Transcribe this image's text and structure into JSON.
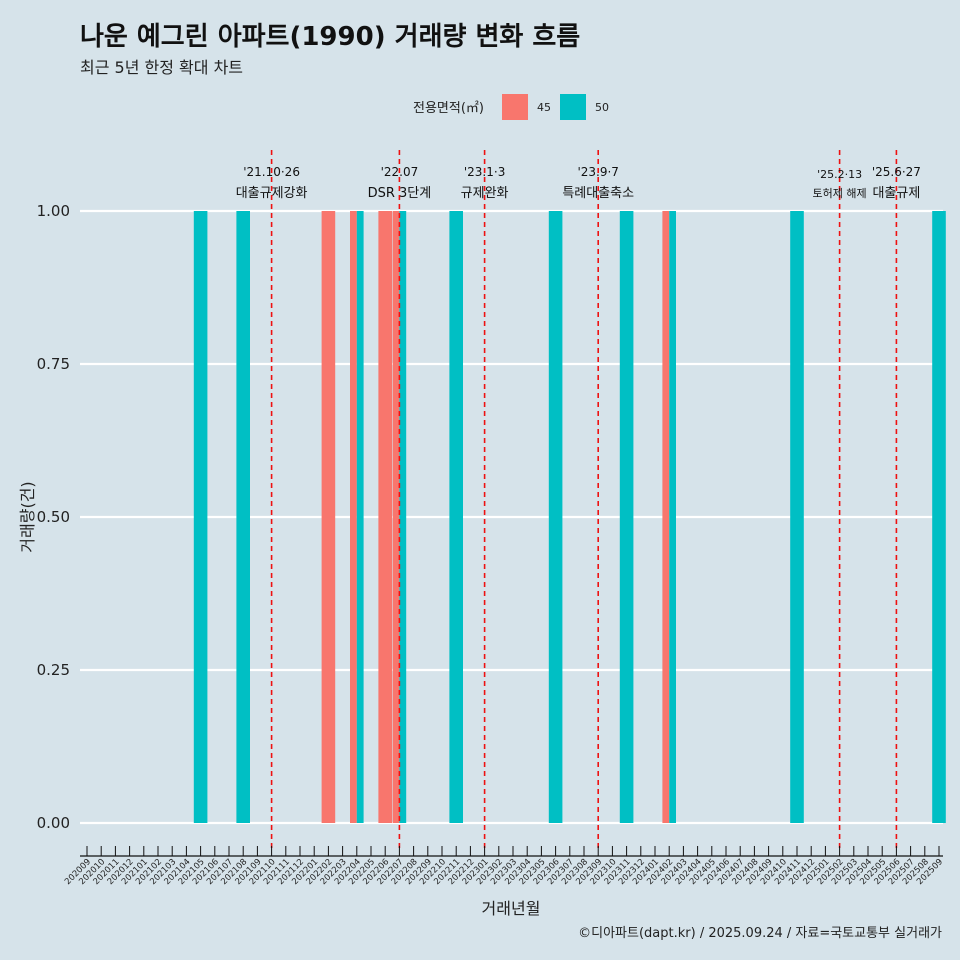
{
  "header": {
    "title": "나운 예그린 아파트(1990) 거래량 변화 흐름",
    "subtitle": "최근 5년 한정 확대 차트"
  },
  "caption": "©디아파트(dapt.kr) / 2025.09.24 / 자료=국토교통부 실거래가",
  "legend": {
    "title": "전용면적(㎡)",
    "items": [
      {
        "label": "45",
        "color": "#F8766D"
      },
      {
        "label": "50",
        "color": "#00BFC4"
      }
    ]
  },
  "chart_data": {
    "type": "bar",
    "title": "나운 예그린 아파트(1990) 거래량 변화 흐름",
    "subtitle": "최근 5년 한정 확대 차트",
    "xlabel": "거래년월",
    "ylabel": "거래량(건)",
    "ylim": [
      0,
      1
    ],
    "yticks": [
      "0.00",
      "0.25",
      "0.50",
      "0.75",
      "1.00"
    ],
    "categories": [
      "202009",
      "202010",
      "202011",
      "202012",
      "202101",
      "202102",
      "202103",
      "202104",
      "202105",
      "202106",
      "202107",
      "202108",
      "202109",
      "202110",
      "202111",
      "202112",
      "202201",
      "202202",
      "202203",
      "202204",
      "202205",
      "202206",
      "202207",
      "202208",
      "202209",
      "202210",
      "202211",
      "202212",
      "202301",
      "202302",
      "202303",
      "202304",
      "202305",
      "202306",
      "202307",
      "202308",
      "202309",
      "202310",
      "202311",
      "202312",
      "202401",
      "202402",
      "202403",
      "202404",
      "202405",
      "202406",
      "202407",
      "202408",
      "202409",
      "202410",
      "202411",
      "202412",
      "202501",
      "202502",
      "202503",
      "202504",
      "202505",
      "202506",
      "202507",
      "202508",
      "202509"
    ],
    "series": [
      {
        "name": "45",
        "color": "#F8766D",
        "points": [
          {
            "month": "202202",
            "value": 1
          },
          {
            "month": "202204",
            "value": 1
          },
          {
            "month": "202206",
            "value": 1
          },
          {
            "month": "202207",
            "value": 1
          },
          {
            "month": "202402",
            "value": 1
          }
        ]
      },
      {
        "name": "50",
        "color": "#00BFC4",
        "points": [
          {
            "month": "202105",
            "value": 1
          },
          {
            "month": "202108",
            "value": 1
          },
          {
            "month": "202204",
            "value": 1
          },
          {
            "month": "202207",
            "value": 1
          },
          {
            "month": "202211",
            "value": 1
          },
          {
            "month": "202306",
            "value": 1
          },
          {
            "month": "202311",
            "value": 1
          },
          {
            "month": "202402",
            "value": 1
          },
          {
            "month": "202411",
            "value": 1
          },
          {
            "month": "202509",
            "value": 1
          }
        ]
      }
    ],
    "events": [
      {
        "month": "202110",
        "date": "'21.10·26",
        "label": "대출규제강화"
      },
      {
        "month": "202207",
        "date": "'22.07",
        "label": "DSR 3단계"
      },
      {
        "month": "202301",
        "date": "'23.1·3",
        "label": "규제완화"
      },
      {
        "month": "202309",
        "date": "'23.9·7",
        "label": "특례대출축소"
      },
      {
        "month": "202502",
        "date": "'25.2·13",
        "label": "토허제 해제"
      },
      {
        "month": "202506",
        "date": "'25.6·27",
        "label": "대출규제"
      }
    ],
    "legend_position": "top"
  }
}
